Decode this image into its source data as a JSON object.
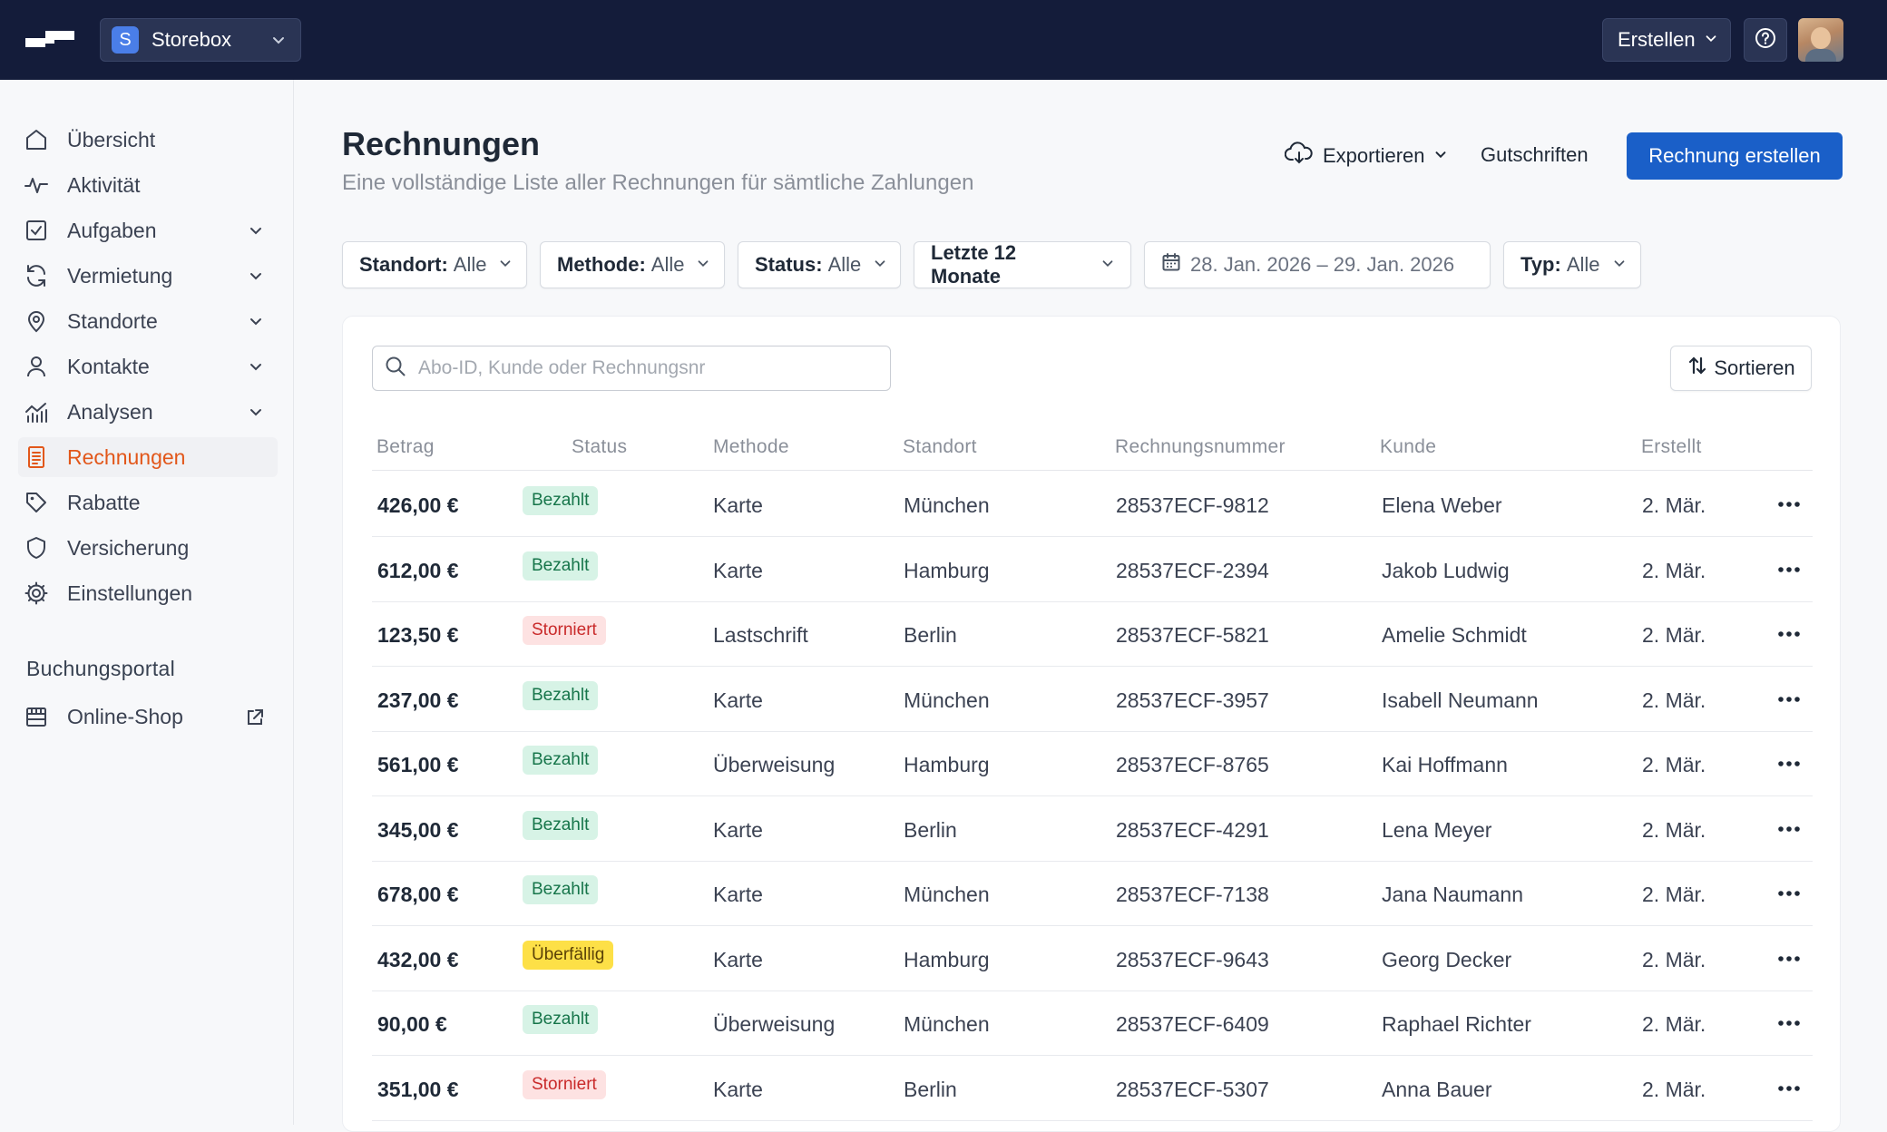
{
  "app": {
    "store_initial": "S",
    "store_name": "Storebox",
    "create_label": "Erstellen"
  },
  "sidebar": {
    "items": [
      {
        "label": "Übersicht"
      },
      {
        "label": "Aktivität"
      },
      {
        "label": "Aufgaben"
      },
      {
        "label": "Vermietung"
      },
      {
        "label": "Standorte"
      },
      {
        "label": "Kontakte"
      },
      {
        "label": "Analysen"
      },
      {
        "label": "Rechnungen"
      },
      {
        "label": "Rabatte"
      },
      {
        "label": "Versicherung"
      },
      {
        "label": "Einstellungen"
      }
    ],
    "section_title": "Buchungsportal",
    "section_items": [
      {
        "label": "Online-Shop"
      }
    ],
    "active_color": "#e2571a"
  },
  "page": {
    "title": "Rechnungen",
    "subtitle": "Eine vollständige Liste aller Rechnungen für sämtliche Zahlungen",
    "export_label": "Exportieren",
    "credit_label": "Gutschriften",
    "primary_label": "Rechnung erstellen",
    "primary_color": "#1a5fc8"
  },
  "filters": {
    "location": {
      "key": "Standort:",
      "value": "Alle"
    },
    "method": {
      "key": "Methode:",
      "value": "Alle"
    },
    "status": {
      "key": "Status:",
      "value": "Alle"
    },
    "period": {
      "label": "Letzte 12 Monate"
    },
    "date_range": {
      "label": "28. Jan. 2026 – 29. Jan. 2026"
    },
    "type": {
      "key": "Typ:",
      "value": "Alle"
    }
  },
  "table": {
    "search_placeholder": "Abo-ID, Kunde oder Rechnungsnr",
    "sort_label": "Sortieren",
    "columns": [
      "Betrag",
      "Status",
      "Methode",
      "Standort",
      "Rechnungsnummer",
      "Kunde",
      "Erstellt"
    ],
    "rows": [
      {
        "amount": "426,00 €",
        "status": "Bezahlt",
        "status_type": "paid",
        "method": "Karte",
        "location": "München",
        "number": "28537ECF-9812",
        "customer": "Elena Weber",
        "created": "2. Mär."
      },
      {
        "amount": "612,00 €",
        "status": "Bezahlt",
        "status_type": "paid",
        "method": "Karte",
        "location": "Hamburg",
        "number": "28537ECF-2394",
        "customer": "Jakob Ludwig",
        "created": "2. Mär."
      },
      {
        "amount": "123,50 €",
        "status": "Storniert",
        "status_type": "cancel",
        "method": "Lastschrift",
        "location": "Berlin",
        "number": "28537ECF-5821",
        "customer": "Amelie Schmidt",
        "created": "2. Mär."
      },
      {
        "amount": "237,00 €",
        "status": "Bezahlt",
        "status_type": "paid",
        "method": "Karte",
        "location": "München",
        "number": "28537ECF-3957",
        "customer": "Isabell Neumann",
        "created": "2. Mär."
      },
      {
        "amount": "561,00 €",
        "status": "Bezahlt",
        "status_type": "paid",
        "method": "Überweisung",
        "location": "Hamburg",
        "number": "28537ECF-8765",
        "customer": "Kai Hoffmann",
        "created": "2. Mär."
      },
      {
        "amount": "345,00 €",
        "status": "Bezahlt",
        "status_type": "paid",
        "method": "Karte",
        "location": "Berlin",
        "number": "28537ECF-4291",
        "customer": "Lena Meyer",
        "created": "2. Mär."
      },
      {
        "amount": "678,00 €",
        "status": "Bezahlt",
        "status_type": "paid",
        "method": "Karte",
        "location": "München",
        "number": "28537ECF-7138",
        "customer": "Jana Naumann",
        "created": "2. Mär."
      },
      {
        "amount": "432,00 €",
        "status": "Überfällig",
        "status_type": "overdue",
        "method": "Karte",
        "location": "Hamburg",
        "number": "28537ECF-9643",
        "customer": "Georg Decker",
        "created": "2. Mär."
      },
      {
        "amount": "90,00 €",
        "status": "Bezahlt",
        "status_type": "paid",
        "method": "Überweisung",
        "location": "München",
        "number": "28537ECF-6409",
        "customer": "Raphael Richter",
        "created": "2. Mär."
      },
      {
        "amount": "351,00 €",
        "status": "Storniert",
        "status_type": "cancel",
        "method": "Karte",
        "location": "Berlin",
        "number": "28537ECF-5307",
        "customer": "Anna Bauer",
        "created": "2. Mär."
      }
    ]
  },
  "colors": {
    "topbar": "#141c3a",
    "paid_bg": "#d7f3e6",
    "cancel_bg": "#fde2e2",
    "overdue_bg": "#fde047"
  }
}
